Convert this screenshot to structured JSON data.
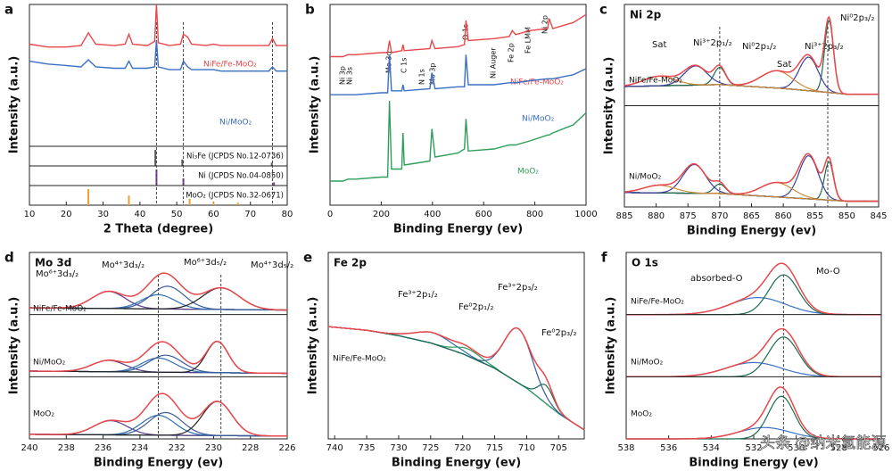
{
  "chart_data": [
    {
      "type": "line",
      "panel": "a",
      "x_label": "2 Theta (degree)",
      "y_label": "Intensity (a.u.)",
      "xlim": [
        10,
        80
      ],
      "xticks": [
        10,
        20,
        30,
        40,
        50,
        60,
        70,
        80
      ],
      "ylim": [
        0,
        100
      ],
      "x": [
        10,
        15,
        20,
        24,
        26,
        28,
        33,
        36,
        37,
        38,
        42,
        44,
        44.5,
        45,
        48,
        51,
        51.8,
        53,
        54,
        58,
        60,
        62,
        65,
        70,
        75,
        76,
        77,
        80
      ],
      "series": [
        {
          "name": "NiFe/Fe-MoO₂",
          "color": "#e8474b",
          "values": [
            72,
            70,
            70,
            71,
            80,
            72,
            71,
            72,
            79,
            72,
            71,
            74,
            100,
            73,
            71,
            72,
            79,
            77,
            72,
            71,
            72,
            71,
            71,
            71,
            71,
            76,
            71,
            71
          ]
        },
        {
          "name": "Ni/MoO₂",
          "color": "#3b6fc4",
          "values": [
            60,
            58,
            57,
            56,
            61,
            56,
            55,
            55,
            60,
            55,
            55,
            56,
            75,
            56,
            54,
            54,
            60,
            56,
            54,
            54,
            54,
            53,
            53,
            53,
            53,
            56,
            53,
            53
          ]
        }
      ],
      "reference_lines": [
        44.5,
        51.8,
        76
      ],
      "ref_ylim": [
        0,
        100
      ],
      "references": [
        {
          "label": "Ni₃Fe (JCPDS No.12-0736)",
          "color": "#555555",
          "positions": [
            44.2,
            51.5,
            75.8
          ],
          "heights": [
            100,
            40,
            20
          ]
        },
        {
          "label": "Ni (JCPDS No.04-0850)",
          "color": "#7b3fa0",
          "positions": [
            44.5,
            51.8,
            76.4
          ],
          "heights": [
            100,
            45,
            20
          ]
        },
        {
          "label": "MoO₂ (JCPDS No.32-0671)",
          "color": "#f0a030",
          "positions": [
            26,
            37,
            53.5,
            60,
            66.6
          ],
          "heights": [
            100,
            60,
            40,
            20,
            15
          ]
        }
      ]
    },
    {
      "type": "line",
      "panel": "b",
      "x_label": "Binding Energy (ev)",
      "y_label": "Intensity (a.u.)",
      "xlim": [
        0,
        1000
      ],
      "xticks": [
        0,
        200,
        400,
        600,
        800,
        1000
      ],
      "ylim": [
        0,
        100
      ],
      "x": [
        0,
        50,
        70,
        100,
        200,
        225,
        232,
        240,
        280,
        285,
        290,
        390,
        398,
        410,
        500,
        525,
        531,
        540,
        640,
        700,
        712,
        725,
        780,
        850,
        856,
        870,
        950,
        1000
      ],
      "series": [
        {
          "name": "NiFe/Fe-MoO₂",
          "color": "#e8474b",
          "values": [
            74,
            74,
            75,
            75,
            76,
            76,
            82,
            76,
            77,
            80,
            77,
            78,
            82,
            78,
            79,
            80,
            92,
            82,
            83,
            84,
            87,
            85,
            87,
            88,
            93,
            88,
            91,
            95
          ]
        },
        {
          "name": "Ni/MoO₂",
          "color": "#3b6fc4",
          "values": [
            55,
            55,
            55,
            55,
            56,
            56,
            75,
            57,
            57,
            60,
            57,
            58,
            66,
            58,
            59,
            59,
            75,
            60,
            60,
            61,
            61,
            61,
            62,
            63,
            63,
            63,
            65,
            68
          ]
        },
        {
          "name": "MoO₂",
          "color": "#2e9e5b",
          "values": [
            12,
            12,
            13,
            13,
            14,
            14,
            52,
            18,
            18,
            36,
            20,
            22,
            38,
            24,
            26,
            28,
            43,
            27,
            28,
            30,
            30,
            30,
            32,
            35,
            35,
            36,
            40,
            46
          ]
        }
      ],
      "annotations": [
        "Ni 3p",
        "Ni 3s",
        "Mo 3d",
        "C 1s",
        "N 1s",
        "Mo 3p",
        "O 1s",
        "Ni Auger",
        "Fe 2p",
        "Fe LMM",
        "Ni 2p"
      ]
    },
    {
      "type": "fit",
      "panel": "c",
      "title": "Ni 2p",
      "x_label": "Binding Energy (ev)",
      "y_label": "Intensity (a.u.)",
      "xlim": [
        885,
        845
      ],
      "xticks": [
        885,
        880,
        875,
        870,
        865,
        860,
        855,
        850,
        845
      ],
      "ylim": [
        0,
        100
      ],
      "reference_lines": [
        870,
        853
      ],
      "spectra": [
        {
          "name": "NiFe/Fe-MoO₂",
          "color": "#e8474b",
          "background": {
            "x": [
              885,
              870,
              860,
              850,
              845
            ],
            "values": [
              20,
              22,
              18,
              12,
              12
            ]
          },
          "peaks": [
            {
              "center": 852.8,
              "height": 75,
              "width": 0.7,
              "color": "#1b6b52"
            },
            {
              "center": 856,
              "height": 35,
              "width": 1.5,
              "color": "#3a3f9a"
            },
            {
              "center": 861,
              "height": 18,
              "width": 2.5,
              "color": "#d08a3a"
            },
            {
              "center": 870,
              "height": 18,
              "width": 0.9,
              "color": "#1b6b52"
            },
            {
              "center": 873.8,
              "height": 20,
              "width": 1.8,
              "color": "#3a3f9a"
            },
            {
              "center": 879.5,
              "height": 10,
              "width": 2.5,
              "color": "#d08a3a"
            }
          ]
        },
        {
          "name": "Ni/MoO₂",
          "color": "#e8474b",
          "background": {
            "x": [
              885,
              870,
              860,
              850,
              845
            ],
            "values": [
              15,
              14,
              10,
              6,
              6
            ]
          },
          "peaks": [
            {
              "center": 852.8,
              "height": 40,
              "width": 0.7,
              "color": "#1b6b52"
            },
            {
              "center": 856,
              "height": 45,
              "width": 1.5,
              "color": "#3a3f9a"
            },
            {
              "center": 861,
              "height": 15,
              "width": 2.5,
              "color": "#d08a3a"
            },
            {
              "center": 870,
              "height": 10,
              "width": 0.9,
              "color": "#1b6b52"
            },
            {
              "center": 874,
              "height": 30,
              "width": 1.8,
              "color": "#3a3f9a"
            },
            {
              "center": 879.5,
              "height": 8,
              "width": 2.5,
              "color": "#d08a3a"
            }
          ]
        }
      ],
      "annotations": [
        "Sat",
        "Ni³⁺2p₁/₂",
        "Ni⁰2p₁/₂",
        "Sat",
        "Ni³⁺2p₃/₂",
        "Ni⁰2p₃/₂"
      ]
    },
    {
      "type": "fit",
      "panel": "d",
      "title": "Mo 3d",
      "x_label": "Binding Energy (ev)",
      "y_label": "Intensity (a.u.)",
      "xlim": [
        240,
        226
      ],
      "xticks": [
        240,
        238,
        236,
        234,
        232,
        230,
        228,
        226
      ],
      "ylim": [
        0,
        100
      ],
      "reference_lines": [
        233,
        229.6
      ],
      "spectra": [
        {
          "name": "NiFe/Fe-MoO₂",
          "color": "#e8474b",
          "background": {
            "x": [
              240,
              226
            ],
            "values": [
              12,
              8
            ]
          },
          "peaks": [
            {
              "center": 235.7,
              "height": 30,
              "width": 0.9,
              "color": "#5a3a8a"
            },
            {
              "center": 233,
              "height": 25,
              "width": 0.9,
              "color": "#2d6fb0"
            },
            {
              "center": 232.5,
              "height": 40,
              "width": 0.9,
              "color": "#3a5a9a"
            },
            {
              "center": 229.6,
              "height": 38,
              "width": 1.0,
              "color": "#222222"
            }
          ]
        },
        {
          "name": "Ni/MoO₂",
          "color": "#e8474b",
          "background": {
            "x": [
              240,
              226
            ],
            "values": [
              10,
              6
            ]
          },
          "peaks": [
            {
              "center": 235.7,
              "height": 20,
              "width": 0.9,
              "color": "#5a3a8a"
            },
            {
              "center": 233,
              "height": 25,
              "width": 0.9,
              "color": "#2d6fb0"
            },
            {
              "center": 232.6,
              "height": 30,
              "width": 0.9,
              "color": "#3a5a9a"
            },
            {
              "center": 229.8,
              "height": 55,
              "width": 0.6,
              "color": "#222222"
            }
          ]
        },
        {
          "name": "MoO₂",
          "color": "#e8474b",
          "background": {
            "x": [
              240,
              226
            ],
            "values": [
              8,
              5
            ]
          },
          "peaks": [
            {
              "center": 235.6,
              "height": 25,
              "width": 0.9,
              "color": "#5a3a8a"
            },
            {
              "center": 233,
              "height": 35,
              "width": 0.9,
              "color": "#2d6fb0"
            },
            {
              "center": 232.6,
              "height": 40,
              "width": 0.9,
              "color": "#3a5a9a"
            },
            {
              "center": 229.8,
              "height": 60,
              "width": 0.8,
              "color": "#222222"
            }
          ]
        }
      ],
      "annotations": [
        "Mo⁶⁺3d₃/₂",
        "Mo⁴⁺3d₃/₂",
        "Mo⁶⁺3d₅/₂",
        "Mo⁴⁺3d₅/₂"
      ]
    },
    {
      "type": "fit",
      "panel": "e",
      "title": "Fe 2p",
      "x_label": "Binding Energy (ev)",
      "y_label": "Intensity (a.u.)",
      "xlim": [
        741,
        701
      ],
      "xticks": [
        740,
        735,
        730,
        725,
        720,
        715,
        710,
        705
      ],
      "ylim": [
        0,
        100
      ],
      "spectra": [
        {
          "name": "NiFe/Fe-MoO₂",
          "color": "#e8474b",
          "background": {
            "x": [
              741,
              735,
              730,
              725,
              720,
              715,
              710,
              705,
              701
            ],
            "values": [
              62,
              60,
              57,
              53,
              47,
              39,
              28,
              14,
              5
            ]
          },
          "peaks": [
            {
              "center": 724.5,
              "height": 6,
              "width": 3,
              "color": "#2d6fb0"
            },
            {
              "center": 719,
              "height": 4,
              "width": 2,
              "color": "#2e9e5b"
            },
            {
              "center": 711.3,
              "height": 30,
              "width": 2.2,
              "color": "#3a5a9a"
            },
            {
              "center": 707,
              "height": 10,
              "width": 1.2,
              "color": "#1b6b52"
            }
          ]
        }
      ],
      "annotations": [
        "Fe³⁺2p₁/₂",
        "Fe⁰2p₁/₂",
        "Fe³⁺2p₃/₂",
        "Fe⁰2p₃/₂"
      ]
    },
    {
      "type": "fit",
      "panel": "f",
      "title": "O 1s",
      "x_label": "Binding Energy (ev)",
      "y_label": "Intensity (a.u.)",
      "xlim": [
        538,
        526
      ],
      "xticks": [
        538,
        536,
        534,
        532,
        530,
        528,
        526
      ],
      "ylim": [
        0,
        100
      ],
      "reference_lines": [
        530.6
      ],
      "spectra": [
        {
          "name": "NiFe/Fe-MoO₂",
          "color": "#e8474b",
          "peaks": [
            {
              "center": 531.8,
              "height": 30,
              "width": 1.3,
              "color": "#3b6fc4"
            },
            {
              "center": 530.6,
              "height": 70,
              "width": 0.7,
              "color": "#1b6b52"
            }
          ]
        },
        {
          "name": "Ni/MoO₂",
          "color": "#e8474b",
          "peaks": [
            {
              "center": 532,
              "height": 25,
              "width": 1.3,
              "color": "#3b6fc4"
            },
            {
              "center": 530.6,
              "height": 70,
              "width": 0.7,
              "color": "#1b6b52"
            }
          ]
        },
        {
          "name": "MoO₂",
          "color": "#e8474b",
          "peaks": [
            {
              "center": 531.5,
              "height": 20,
              "width": 1.2,
              "color": "#3b6fc4"
            },
            {
              "center": 530.7,
              "height": 75,
              "width": 0.6,
              "color": "#1b6b52"
            }
          ]
        }
      ],
      "annotations": [
        "absorbed-O",
        "Mo-O"
      ]
    }
  ],
  "watermark": "头条 @纳米氢能源"
}
